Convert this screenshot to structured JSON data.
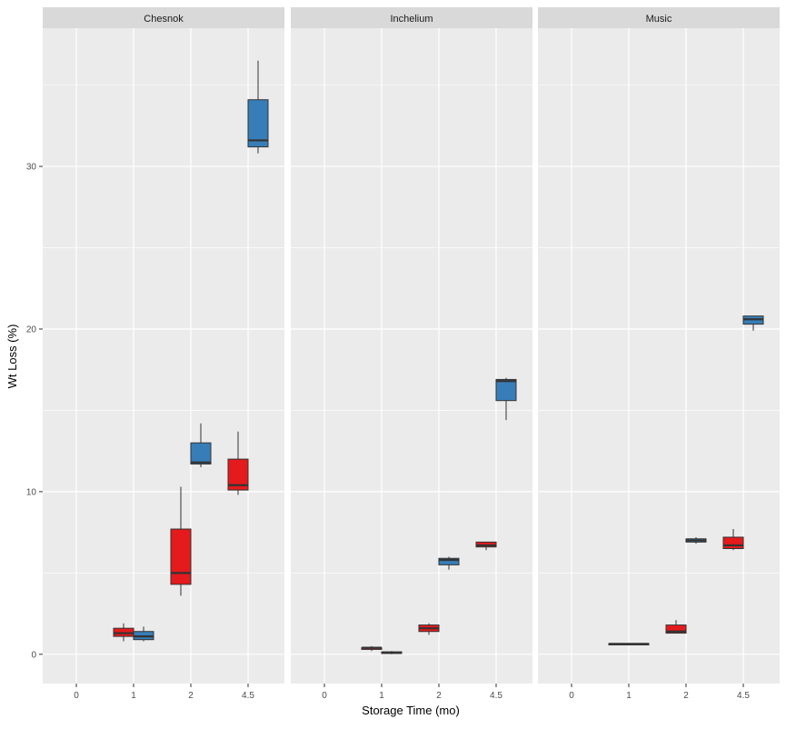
{
  "chart_data": {
    "type": "box",
    "xlabel": "Storage Time (mo)",
    "ylabel": "Wt Loss (%)",
    "x_ticks": [
      "0",
      "1",
      "2",
      "4.5"
    ],
    "y_ticks": [
      0,
      10,
      20,
      30
    ],
    "ylim": [
      -1.8,
      38.5
    ],
    "grid": true,
    "legend": "none",
    "colors": {
      "red": "#E41A1C",
      "blue": "#377EB8",
      "panel_bg": "#EBEBEB",
      "strip_bg": "#D9D9D9"
    },
    "panels": [
      {
        "name": "Chesnok",
        "boxes": [
          {
            "x": "1",
            "group": "red",
            "min": 0.8,
            "q1": 1.1,
            "median": 1.3,
            "q3": 1.6,
            "max": 1.9
          },
          {
            "x": "1",
            "group": "blue",
            "min": 0.8,
            "q1": 0.9,
            "median": 1.1,
            "q3": 1.4,
            "max": 1.7
          },
          {
            "x": "2",
            "group": "red",
            "min": 3.6,
            "q1": 4.3,
            "median": 5.0,
            "q3": 7.7,
            "max": 10.3
          },
          {
            "x": "2",
            "group": "blue",
            "min": 11.5,
            "q1": 11.7,
            "median": 11.8,
            "q3": 13.0,
            "max": 14.2
          },
          {
            "x": "4.5",
            "group": "red",
            "min": 9.8,
            "q1": 10.1,
            "median": 10.4,
            "q3": 12.0,
            "max": 13.7
          },
          {
            "x": "4.5",
            "group": "blue",
            "min": 30.8,
            "q1": 31.2,
            "median": 31.6,
            "q3": 34.1,
            "max": 36.5
          }
        ]
      },
      {
        "name": "Inchelium",
        "boxes": [
          {
            "x": "1",
            "group": "red",
            "min": 0.2,
            "q1": 0.3,
            "median": 0.4,
            "q3": 0.4,
            "max": 0.5
          },
          {
            "x": "1",
            "group": "blue",
            "min": 0.0,
            "q1": 0.05,
            "median": 0.1,
            "q3": 0.15,
            "max": 0.2
          },
          {
            "x": "2",
            "group": "red",
            "min": 1.2,
            "q1": 1.4,
            "median": 1.6,
            "q3": 1.8,
            "max": 1.9
          },
          {
            "x": "2",
            "group": "blue",
            "min": 5.2,
            "q1": 5.5,
            "median": 5.8,
            "q3": 5.9,
            "max": 6.0
          },
          {
            "x": "4.5",
            "group": "red",
            "min": 6.4,
            "q1": 6.6,
            "median": 6.7,
            "q3": 6.9,
            "max": 6.9
          },
          {
            "x": "4.5",
            "group": "blue",
            "min": 14.4,
            "q1": 15.6,
            "median": 16.8,
            "q3": 16.9,
            "max": 17.0
          }
        ]
      },
      {
        "name": "Music",
        "boxes": [
          {
            "x": "1",
            "group": "red",
            "min": 0.6,
            "q1": 0.62,
            "median": 0.64,
            "q3": 0.66,
            "max": 0.68
          },
          {
            "x": "1",
            "group": "blue",
            "min": 0.6,
            "q1": 0.62,
            "median": 0.64,
            "q3": 0.66,
            "max": 0.68
          },
          {
            "x": "2",
            "group": "red",
            "min": 1.3,
            "q1": 1.3,
            "median": 1.4,
            "q3": 1.8,
            "max": 2.1
          },
          {
            "x": "2",
            "group": "blue",
            "min": 6.8,
            "q1": 6.9,
            "median": 7.0,
            "q3": 7.1,
            "max": 7.2
          },
          {
            "x": "4.5",
            "group": "red",
            "min": 6.4,
            "q1": 6.5,
            "median": 6.7,
            "q3": 7.2,
            "max": 7.7
          },
          {
            "x": "4.5",
            "group": "blue",
            "min": 19.9,
            "q1": 20.3,
            "median": 20.6,
            "q3": 20.8,
            "max": 20.8
          }
        ]
      }
    ]
  }
}
